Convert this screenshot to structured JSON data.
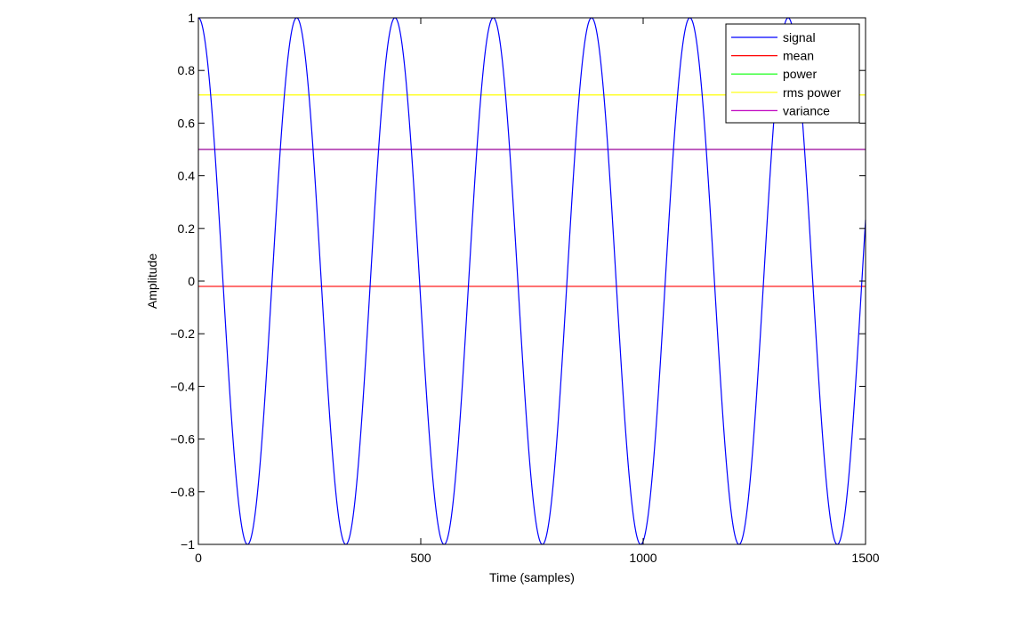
{
  "chart_data": {
    "type": "line",
    "title": "",
    "xlabel": "Time (samples)",
    "ylabel": "Amplitude",
    "xlim": [
      0,
      1500
    ],
    "ylim": [
      -1,
      1
    ],
    "xticks": [
      0,
      500,
      1000,
      1500
    ],
    "yticks": [
      -1,
      -0.8,
      -0.6,
      -0.4,
      -0.2,
      0,
      0.2,
      0.4,
      0.6,
      0.8,
      1
    ],
    "grid": false,
    "legend_position": "top-right",
    "signal": {
      "name": "signal",
      "color": "#0000ff",
      "function": "cosine",
      "amplitude": 1,
      "period_samples": 221,
      "x_start": 0,
      "x_end": 1500,
      "initial_value": 1
    },
    "series": [
      {
        "name": "signal",
        "color": "#0000ff"
      },
      {
        "name": "mean",
        "color": "#ff0000",
        "value": -0.02
      },
      {
        "name": "power",
        "color": "#00ff00",
        "value": 0.5
      },
      {
        "name": "rms power",
        "color": "#ffff00",
        "value": 0.707
      },
      {
        "name": "variance",
        "color": "#bf00bf",
        "value": 0.5
      }
    ]
  }
}
